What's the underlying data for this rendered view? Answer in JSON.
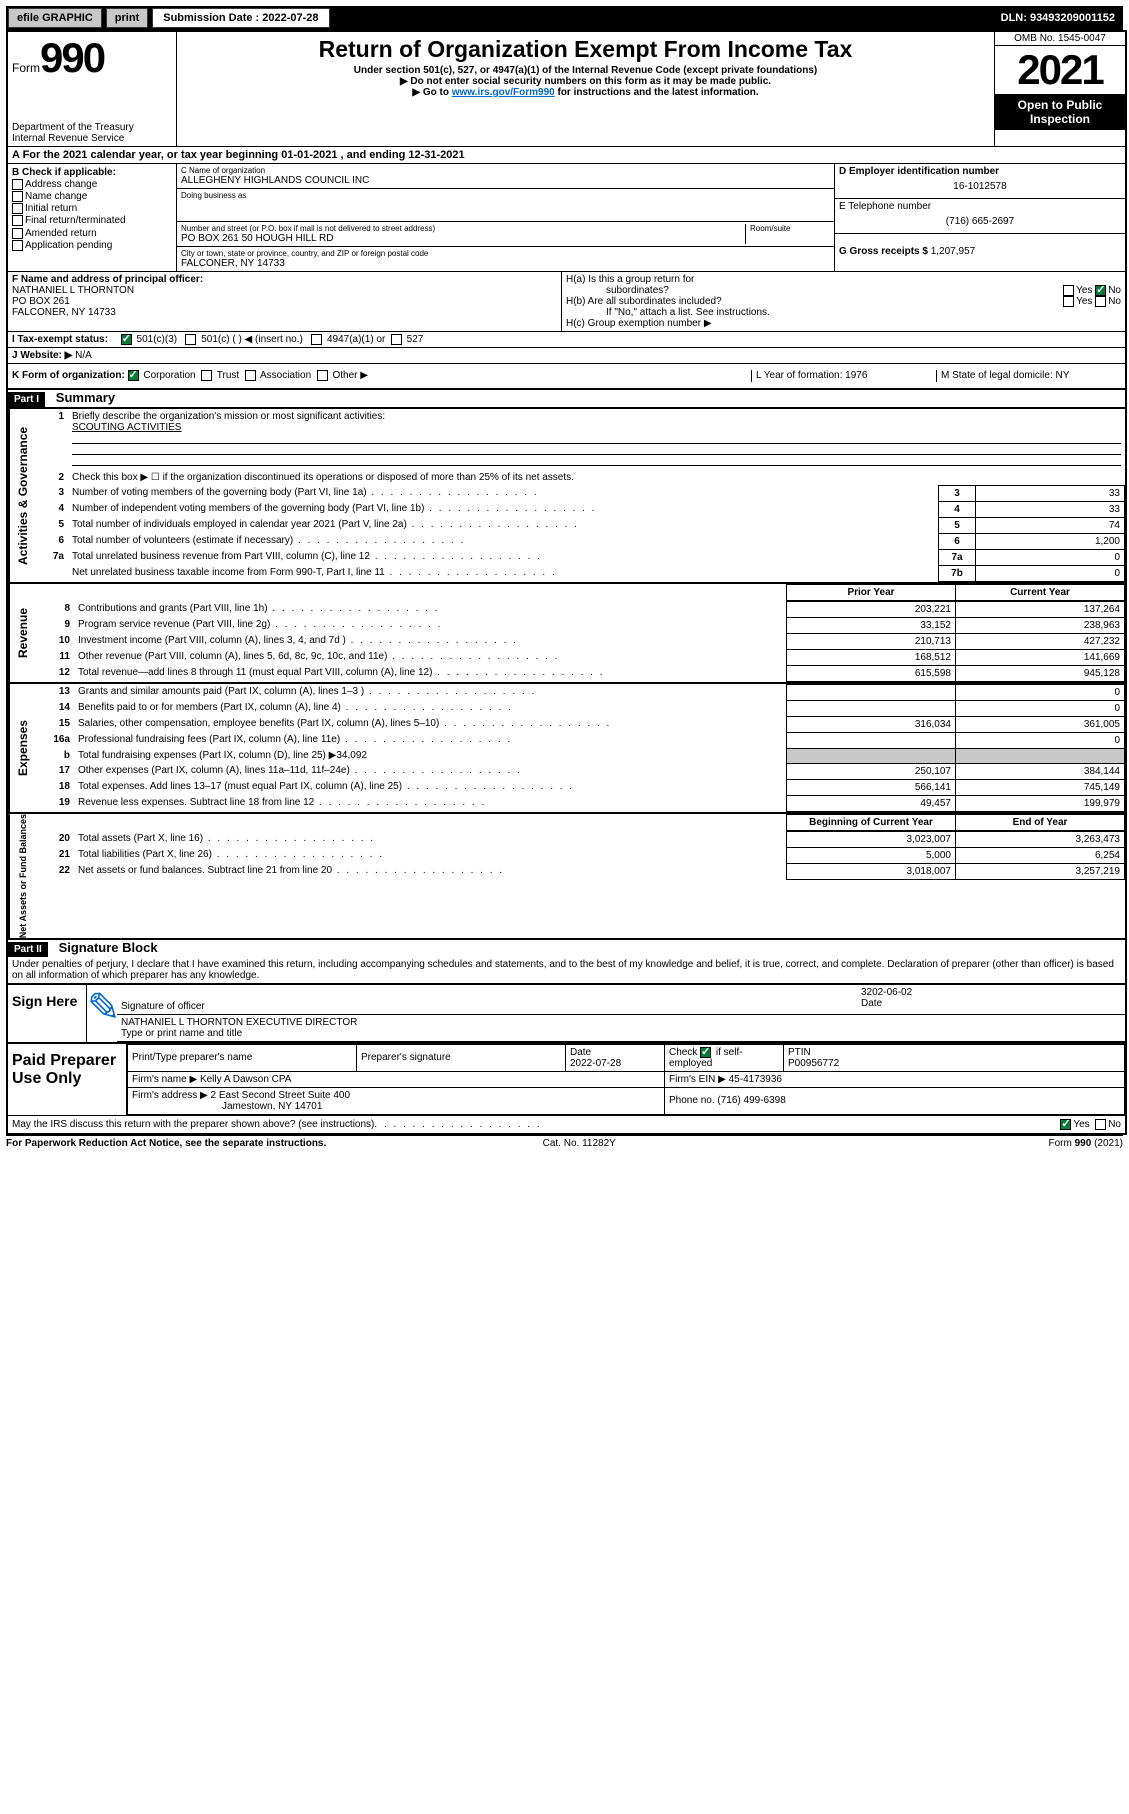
{
  "top_bar": {
    "efile": "efile GRAPHIC",
    "print": "print",
    "sub_label": "Submission Date : 2022-07-28",
    "dln": "DLN: 93493209001152"
  },
  "header": {
    "form": "Form",
    "form_num": "990",
    "dept": "Department of the Treasury",
    "irs": "Internal Revenue Service",
    "title": "Return of Organization Exempt From Income Tax",
    "subtitle": "Under section 501(c), 527, or 4947(a)(1) of the Internal Revenue Code (except private foundations)",
    "line1": "▶ Do not enter social security numbers on this form as it may be made public.",
    "line2_pre": "▶ Go to ",
    "line2_link": "www.irs.gov/Form990",
    "line2_post": " for instructions and the latest information.",
    "omb": "OMB No. 1545-0047",
    "year": "2021",
    "open": "Open to Public Inspection"
  },
  "periodA": "A For the 2021 calendar year, or tax year beginning 01-01-2021   , and ending 12-31-2021",
  "boxB": {
    "title": "B Check if applicable:",
    "opts": [
      "Address change",
      "Name change",
      "Initial return",
      "Final return/terminated",
      "Amended return",
      "Application pending"
    ]
  },
  "boxC": {
    "name_label": "C Name of organization",
    "name": "ALLEGHENY HIGHLANDS COUNCIL INC",
    "dba_label": "Doing business as",
    "dba": "",
    "street_label": "Number and street (or P.O. box if mail is not delivered to street address)",
    "room_label": "Room/suite",
    "street": "PO BOX 261 50 HOUGH HILL RD",
    "city_label": "City or town, state or province, country, and ZIP or foreign postal code",
    "city": "FALCONER, NY  14733"
  },
  "boxD": {
    "label": "D Employer identification number",
    "val": "16-1012578"
  },
  "boxE": {
    "label": "E Telephone number",
    "val": "(716) 665-2697"
  },
  "boxG": {
    "label": "G Gross receipts $",
    "val": "1,207,957"
  },
  "boxF": {
    "label": "F Name and address of principal officer:",
    "l1": "NATHANIEL L THORNTON",
    "l2": "PO BOX 261",
    "l3": "FALCONER, NY  14733"
  },
  "boxH": {
    "a": "H(a)  Is this a group return for",
    "a2": "subordinates?",
    "b": "H(b)  Are all subordinates included?",
    "b2": "If \"No,\" attach a list. See instructions.",
    "c": "H(c)  Group exemption number ▶",
    "yes": "Yes",
    "no": "No"
  },
  "rowI": {
    "label": "I    Tax-exempt status:",
    "o1": "501(c)(3)",
    "o2": "501(c) (  ) ◀ (insert no.)",
    "o3": "4947(a)(1) or",
    "o4": "527"
  },
  "rowJ": {
    "label": "J   Website: ▶",
    "val": "N/A"
  },
  "rowK": {
    "label": "K Form of organization:",
    "o1": "Corporation",
    "o2": "Trust",
    "o3": "Association",
    "o4": "Other ▶",
    "L": "L Year of formation: 1976",
    "M": "M State of legal domicile: NY"
  },
  "partI": {
    "hdr": "Part I",
    "title": "Summary",
    "q1": "Briefly describe the organization's mission or most significant activities:",
    "q1v": "SCOUTING ACTIVITIES",
    "q2": "Check this box ▶ ☐  if the organization discontinued its operations or disposed of more than 25% of its net assets.",
    "sideA": "Activities & Governance",
    "sideR": "Revenue",
    "sideE": "Expenses",
    "sideN": "Net Assets or Fund Balances",
    "colPrior": "Prior Year",
    "colCurr": "Current Year",
    "colBeg": "Beginning of Current Year",
    "colEnd": "End of Year",
    "rows_gov": [
      {
        "n": "3",
        "t": "Number of voting members of the governing body (Part VI, line 1a)",
        "v": "33"
      },
      {
        "n": "4",
        "t": "Number of independent voting members of the governing body (Part VI, line 1b)",
        "v": "33"
      },
      {
        "n": "5",
        "t": "Total number of individuals employed in calendar year 2021 (Part V, line 2a)",
        "v": "74"
      },
      {
        "n": "6",
        "t": "Total number of volunteers (estimate if necessary)",
        "v": "1,200"
      },
      {
        "n": "7a",
        "t": "Total unrelated business revenue from Part VIII, column (C), line 12",
        "v": "0"
      },
      {
        "n": "",
        "t": "Net unrelated business taxable income from Form 990-T, Part I, line 11",
        "nn": "7b",
        "v": "0"
      }
    ],
    "rows_rev": [
      {
        "n": "8",
        "t": "Contributions and grants (Part VIII, line 1h)",
        "p": "203,221",
        "c": "137,264"
      },
      {
        "n": "9",
        "t": "Program service revenue (Part VIII, line 2g)",
        "p": "33,152",
        "c": "238,963"
      },
      {
        "n": "10",
        "t": "Investment income (Part VIII, column (A), lines 3, 4, and 7d )",
        "p": "210,713",
        "c": "427,232"
      },
      {
        "n": "11",
        "t": "Other revenue (Part VIII, column (A), lines 5, 6d, 8c, 9c, 10c, and 11e)",
        "p": "168,512",
        "c": "141,669"
      },
      {
        "n": "12",
        "t": "Total revenue—add lines 8 through 11 (must equal Part VIII, column (A), line 12)",
        "p": "615,598",
        "c": "945,128"
      }
    ],
    "rows_exp": [
      {
        "n": "13",
        "t": "Grants and similar amounts paid (Part IX, column (A), lines 1–3 )",
        "p": "",
        "c": "0"
      },
      {
        "n": "14",
        "t": "Benefits paid to or for members (Part IX, column (A), line 4)",
        "p": "",
        "c": "0"
      },
      {
        "n": "15",
        "t": "Salaries, other compensation, employee benefits (Part IX, column (A), lines 5–10)",
        "p": "316,034",
        "c": "361,005"
      },
      {
        "n": "16a",
        "t": "Professional fundraising fees (Part IX, column (A), line 11e)",
        "p": "",
        "c": "0"
      },
      {
        "n": "b",
        "t": "Total fundraising expenses (Part IX, column (D), line 25) ▶34,092",
        "gray": true
      },
      {
        "n": "17",
        "t": "Other expenses (Part IX, column (A), lines 11a–11d, 11f–24e)",
        "p": "250,107",
        "c": "384,144"
      },
      {
        "n": "18",
        "t": "Total expenses. Add lines 13–17 (must equal Part IX, column (A), line 25)",
        "p": "566,141",
        "c": "745,149"
      },
      {
        "n": "19",
        "t": "Revenue less expenses. Subtract line 18 from line 12",
        "p": "49,457",
        "c": "199,979"
      }
    ],
    "rows_net": [
      {
        "n": "20",
        "t": "Total assets (Part X, line 16)",
        "p": "3,023,007",
        "c": "3,263,473"
      },
      {
        "n": "21",
        "t": "Total liabilities (Part X, line 26)",
        "p": "5,000",
        "c": "6,254"
      },
      {
        "n": "22",
        "t": "Net assets or fund balances. Subtract line 21 from line 20",
        "p": "3,018,007",
        "c": "3,257,219"
      }
    ]
  },
  "partII": {
    "hdr": "Part II",
    "title": "Signature Block",
    "decl": "Under penalties of perjury, I declare that I have examined this return, including accompanying schedules and statements, and to the best of my knowledge and belief, it is true, correct, and complete. Declaration of preparer (other than officer) is based on all information of which preparer has any knowledge.",
    "sign_here": "Sign Here",
    "sig_officer": "Signature of officer",
    "date": "Date",
    "date_v": "3202-06-02",
    "name_title": "NATHANIEL L THORNTON  EXECUTIVE DIRECTOR",
    "name_title_lbl": "Type or print name and title",
    "paid": "Paid Preparer Use Only",
    "prep_name_lbl": "Print/Type preparer's name",
    "prep_sig_lbl": "Preparer's signature",
    "prep_date_lbl": "Date",
    "prep_date": "2022-07-28",
    "check_lbl": "Check ☑ if self-employed",
    "ptin_lbl": "PTIN",
    "ptin": "P00956772",
    "firm_name_lbl": "Firm's name    ▶",
    "firm_name": "Kelly A Dawson CPA",
    "firm_ein_lbl": "Firm's EIN ▶",
    "firm_ein": "45-4173936",
    "firm_addr_lbl": "Firm's address ▶",
    "firm_addr1": "2 East Second Street Suite 400",
    "firm_addr2": "Jamestown, NY  14701",
    "phone_lbl": "Phone no.",
    "phone": "(716) 499-6398",
    "discuss": "May the IRS discuss this return with the preparer shown above? (see instructions)",
    "paperwork": "For Paperwork Reduction Act Notice, see the separate instructions.",
    "cat": "Cat. No. 11282Y",
    "formno": "Form 990 (2021)"
  }
}
